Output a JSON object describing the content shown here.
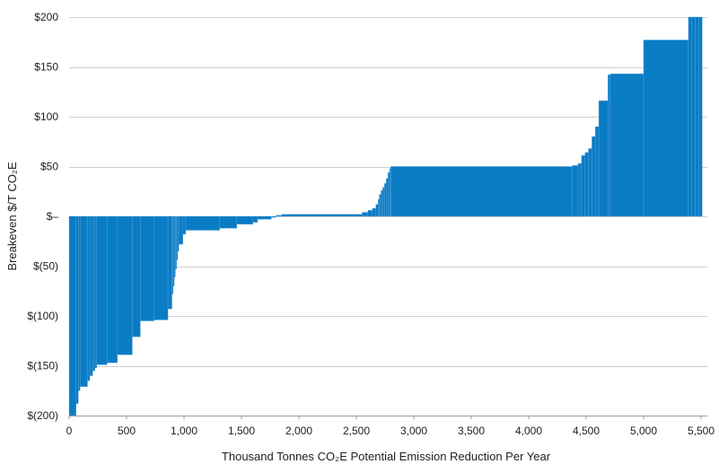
{
  "chart_data": {
    "type": "bar",
    "subtype": "marginal-abatement-cost-curve",
    "title": "",
    "xlabel": "Thousand Tonnes CO₂E Potential Emission Reduction Per Year",
    "ylabel": "Breakeven $/T CO₂E",
    "xlim": [
      0,
      5550
    ],
    "ylim": [
      -200,
      200
    ],
    "x_ticks": [
      {
        "value": 0,
        "label": "0"
      },
      {
        "value": 500,
        "label": "500"
      },
      {
        "value": 1000,
        "label": "1,000"
      },
      {
        "value": 1500,
        "label": "1,500"
      },
      {
        "value": 2000,
        "label": "2,000"
      },
      {
        "value": 2500,
        "label": "2,500"
      },
      {
        "value": 3000,
        "label": "3,000"
      },
      {
        "value": 3500,
        "label": "3,500"
      },
      {
        "value": 4000,
        "label": "4,000"
      },
      {
        "value": 4500,
        "label": "4,500"
      },
      {
        "value": 5000,
        "label": "5,000"
      },
      {
        "value": 5500,
        "label": "5,500"
      }
    ],
    "y_ticks": [
      {
        "value": 200,
        "label": "$200"
      },
      {
        "value": 150,
        "label": "$150"
      },
      {
        "value": 100,
        "label": "$100"
      },
      {
        "value": 50,
        "label": "$50"
      },
      {
        "value": 0,
        "label": "$–"
      },
      {
        "value": -50,
        "label": "$(50)"
      },
      {
        "value": -100,
        "label": "$(100)"
      },
      {
        "value": -150,
        "label": "$(150)"
      },
      {
        "value": -200,
        "label": "$(200)"
      }
    ],
    "grid": true,
    "bar_color": "#0a7cc4",
    "segments": [
      {
        "x0": 0,
        "x1": 60,
        "value": -200
      },
      {
        "x0": 60,
        "x1": 80,
        "value": -188
      },
      {
        "x0": 80,
        "x1": 95,
        "value": -175
      },
      {
        "x0": 95,
        "x1": 160,
        "value": -171
      },
      {
        "x0": 160,
        "x1": 180,
        "value": -165
      },
      {
        "x0": 180,
        "x1": 205,
        "value": -160
      },
      {
        "x0": 205,
        "x1": 225,
        "value": -155
      },
      {
        "x0": 225,
        "x1": 240,
        "value": -152
      },
      {
        "x0": 240,
        "x1": 330,
        "value": -149
      },
      {
        "x0": 330,
        "x1": 420,
        "value": -147
      },
      {
        "x0": 420,
        "x1": 550,
        "value": -139
      },
      {
        "x0": 550,
        "x1": 620,
        "value": -121
      },
      {
        "x0": 620,
        "x1": 740,
        "value": -105
      },
      {
        "x0": 740,
        "x1": 860,
        "value": -104
      },
      {
        "x0": 860,
        "x1": 895,
        "value": -93
      },
      {
        "x0": 895,
        "x1": 905,
        "value": -78
      },
      {
        "x0": 905,
        "x1": 915,
        "value": -70
      },
      {
        "x0": 915,
        "x1": 925,
        "value": -61
      },
      {
        "x0": 925,
        "x1": 935,
        "value": -53
      },
      {
        "x0": 935,
        "x1": 945,
        "value": -44
      },
      {
        "x0": 945,
        "x1": 955,
        "value": -35
      },
      {
        "x0": 955,
        "x1": 990,
        "value": -28
      },
      {
        "x0": 990,
        "x1": 1015,
        "value": -18
      },
      {
        "x0": 1015,
        "x1": 1310,
        "value": -14
      },
      {
        "x0": 1310,
        "x1": 1460,
        "value": -12
      },
      {
        "x0": 1460,
        "x1": 1600,
        "value": -8
      },
      {
        "x0": 1600,
        "x1": 1640,
        "value": -6
      },
      {
        "x0": 1640,
        "x1": 1760,
        "value": -3
      },
      {
        "x0": 1760,
        "x1": 1800,
        "value": -1
      },
      {
        "x0": 1800,
        "x1": 1850,
        "value": 1
      },
      {
        "x0": 1850,
        "x1": 2550,
        "value": 2
      },
      {
        "x0": 2550,
        "x1": 2600,
        "value": 4
      },
      {
        "x0": 2600,
        "x1": 2640,
        "value": 6
      },
      {
        "x0": 2640,
        "x1": 2670,
        "value": 8
      },
      {
        "x0": 2670,
        "x1": 2690,
        "value": 12
      },
      {
        "x0": 2690,
        "x1": 2700,
        "value": 17
      },
      {
        "x0": 2700,
        "x1": 2715,
        "value": 22
      },
      {
        "x0": 2715,
        "x1": 2730,
        "value": 26
      },
      {
        "x0": 2730,
        "x1": 2745,
        "value": 29
      },
      {
        "x0": 2745,
        "x1": 2760,
        "value": 33
      },
      {
        "x0": 2760,
        "x1": 2775,
        "value": 38
      },
      {
        "x0": 2775,
        "x1": 2790,
        "value": 44
      },
      {
        "x0": 2790,
        "x1": 2800,
        "value": 48
      },
      {
        "x0": 2800,
        "x1": 4380,
        "value": 50
      },
      {
        "x0": 4380,
        "x1": 4430,
        "value": 51
      },
      {
        "x0": 4430,
        "x1": 4460,
        "value": 53
      },
      {
        "x0": 4460,
        "x1": 4490,
        "value": 61
      },
      {
        "x0": 4490,
        "x1": 4520,
        "value": 64
      },
      {
        "x0": 4520,
        "x1": 4550,
        "value": 68
      },
      {
        "x0": 4550,
        "x1": 4580,
        "value": 80
      },
      {
        "x0": 4580,
        "x1": 4610,
        "value": 90
      },
      {
        "x0": 4610,
        "x1": 4690,
        "value": 116
      },
      {
        "x0": 4690,
        "x1": 4710,
        "value": 142
      },
      {
        "x0": 4710,
        "x1": 5000,
        "value": 143
      },
      {
        "x0": 5000,
        "x1": 5390,
        "value": 177
      },
      {
        "x0": 5390,
        "x1": 5420,
        "value": 200
      },
      {
        "x0": 5420,
        "x1": 5450,
        "value": 200
      },
      {
        "x0": 5450,
        "x1": 5480,
        "value": 200
      },
      {
        "x0": 5480,
        "x1": 5510,
        "value": 200
      }
    ]
  }
}
